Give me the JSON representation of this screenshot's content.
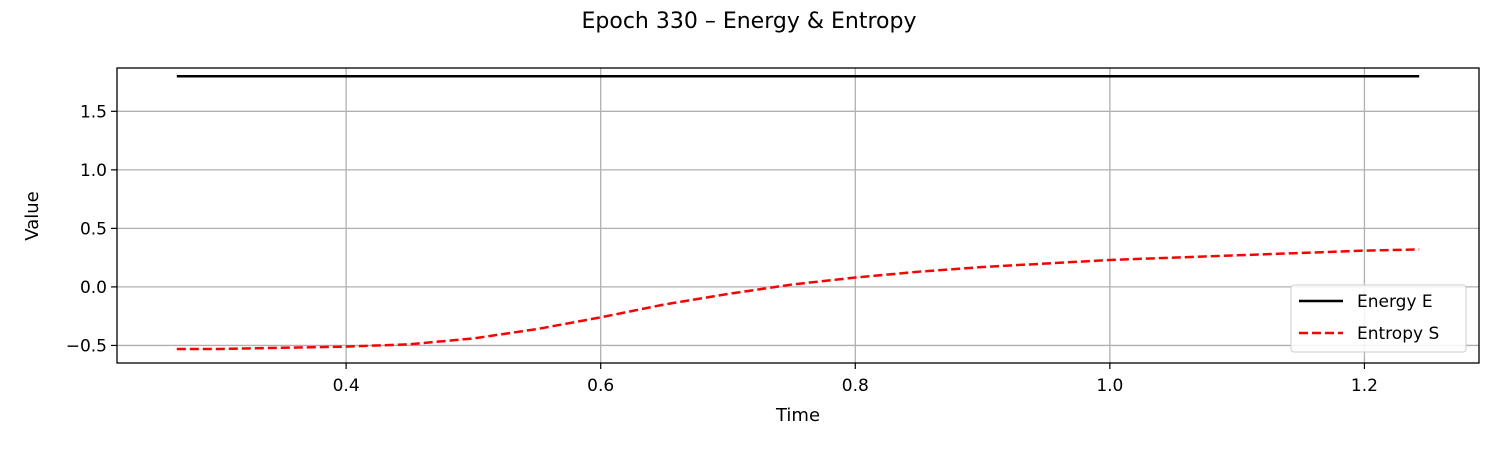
{
  "chart_data": {
    "type": "line",
    "title": "Epoch 330 – Energy & Entropy",
    "xlabel": "Time",
    "ylabel": "Value",
    "xlim": [
      0.22,
      1.29
    ],
    "ylim": [
      -0.65,
      1.87
    ],
    "xticks": [
      0.4,
      0.6,
      0.8,
      1.0,
      1.2
    ],
    "xtick_labels": [
      "0.4",
      "0.6",
      "0.8",
      "1.0",
      "1.2"
    ],
    "yticks": [
      -0.5,
      0.0,
      0.5,
      1.0,
      1.5
    ],
    "ytick_labels": [
      "−0.5",
      "0.0",
      "0.5",
      "1.0",
      "1.5"
    ],
    "grid": true,
    "legend_position": "lower-right",
    "series": [
      {
        "name": "Energy E",
        "color": "#000000",
        "style": "solid",
        "x": [
          0.267,
          1.243
        ],
        "y": [
          1.8,
          1.8
        ]
      },
      {
        "name": "Entropy S",
        "color": "#ff0000",
        "style": "dashed",
        "x": [
          0.267,
          0.3,
          0.35,
          0.4,
          0.45,
          0.5,
          0.55,
          0.6,
          0.65,
          0.7,
          0.75,
          0.8,
          0.85,
          0.9,
          0.95,
          1.0,
          1.05,
          1.1,
          1.15,
          1.2,
          1.243
        ],
        "y": [
          -0.53,
          -0.53,
          -0.52,
          -0.51,
          -0.49,
          -0.44,
          -0.36,
          -0.26,
          -0.15,
          -0.06,
          0.02,
          0.08,
          0.13,
          0.17,
          0.2,
          0.23,
          0.25,
          0.27,
          0.29,
          0.31,
          0.32
        ]
      }
    ]
  }
}
